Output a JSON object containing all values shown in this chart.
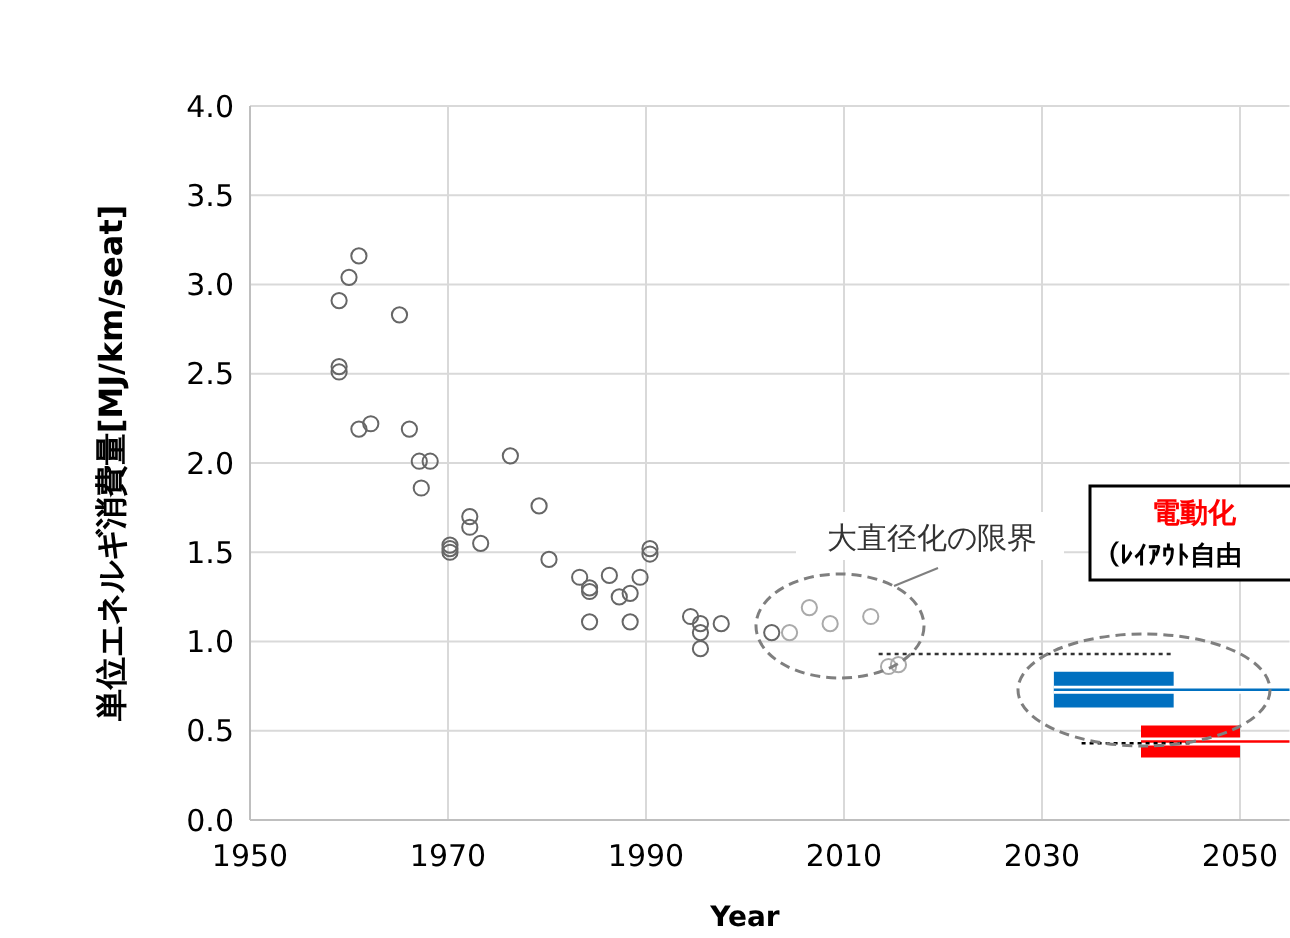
{
  "chart_data": {
    "type": "scatter",
    "xlabel": "Year",
    "ylabel": "単位エネルギ消費量[MJ/km/seat]",
    "xlim": [
      1950,
      2055
    ],
    "xticks": [
      1950,
      1970,
      1990,
      2010,
      2030,
      2050
    ],
    "ylim": [
      0,
      4
    ],
    "yticks": [
      {
        "value": 0,
        "label": "0.0"
      },
      {
        "value": 0.5,
        "label": "0.5"
      },
      {
        "value": 1,
        "label": "1.0"
      },
      {
        "value": 1.5,
        "label": "1.5"
      },
      {
        "value": 2,
        "label": "2.0"
      },
      {
        "value": 2.5,
        "label": "2.5"
      },
      {
        "value": 3,
        "label": "3.0"
      },
      {
        "value": 3.5,
        "label": "3.5"
      },
      {
        "value": 4,
        "label": "4.0"
      }
    ],
    "grid": true,
    "marker": "circle",
    "annotations": [
      "大直径化の限界",
      "電動化",
      "（ﾚｲｱｳﾄ自由"
    ],
    "series": [
      {
        "color": "#666666",
        "x": [
          1959,
          1960,
          1961,
          1965.1,
          1959,
          1959,
          1961,
          1962.2,
          1966.1,
          1967.1,
          1968.2,
          1967.3,
          1976.3,
          1972.2,
          1972.2,
          1973.3,
          1970.2,
          1970.2,
          1970.2,
          1979.2,
          1980.2,
          1983.3,
          1984.3,
          1984.3,
          1986.3,
          1987.3,
          1988.4,
          1989.4,
          1984.3,
          1988.4,
          1990.4,
          1990.4,
          1994.5,
          1995.5,
          1995.5,
          1997.6,
          1995.5,
          2002.7
        ],
        "values": [
          2.91,
          3.04,
          3.16,
          2.83,
          2.54,
          2.51,
          2.19,
          2.22,
          2.19,
          2.01,
          2.01,
          1.86,
          2.04,
          1.7,
          1.64,
          1.55,
          1.54,
          1.52,
          1.5,
          1.76,
          1.46,
          1.36,
          1.3,
          1.28,
          1.37,
          1.25,
          1.27,
          1.36,
          1.11,
          1.11,
          1.52,
          1.49,
          1.14,
          1.1,
          1.05,
          1.1,
          0.96,
          1.05
        ]
      },
      {
        "color": "#aaaaaa",
        "x": [
          2004.5,
          2006.5,
          2008.6,
          2012.7,
          2014.5,
          2015.5
        ],
        "values": [
          1.05,
          1.19,
          1.1,
          1.14,
          0.86,
          0.87
        ]
      },
      {
        "type": "line",
        "color": "#0070c0",
        "marker": "none",
        "x": [
          2031.2,
          2043.3,
          2055
        ],
        "values": [
          0.73,
          0.73,
          0.73
        ],
        "lower": [
          0.63,
          0.63,
          null
        ],
        "upper": [
          0.83,
          0.83,
          null
        ]
      },
      {
        "type": "line",
        "color": "#ff0000",
        "marker": "none",
        "x": [
          2040,
          2050,
          2055
        ],
        "values": [
          0.44,
          0.44,
          0.44
        ],
        "lower": [
          0.35,
          0.35,
          null
        ],
        "upper": [
          0.53,
          0.53,
          null
        ]
      },
      {
        "type": "line",
        "color": "#333333",
        "marker": "none",
        "line_style": "dotted",
        "x": [
          2013.5,
          2043
        ],
        "values": [
          0.93,
          0.93
        ]
      },
      {
        "type": "line",
        "color": "#000000",
        "marker": "none",
        "line_style": "dotted",
        "x": [
          2034,
          2045
        ],
        "values": [
          0.43,
          0.43
        ]
      }
    ]
  }
}
